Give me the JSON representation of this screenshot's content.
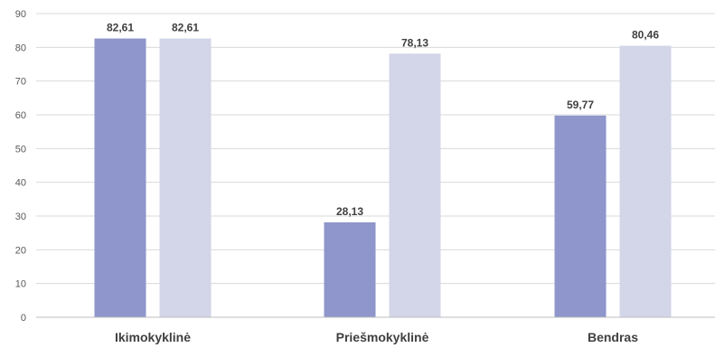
{
  "chart_data": {
    "type": "bar",
    "categories": [
      "Ikimokyklinė",
      "Priešmokyklinė",
      "Bendras"
    ],
    "series": [
      {
        "values": [
          82.61,
          28.13,
          59.77
        ],
        "color": "#8e96cb"
      },
      {
        "values": [
          82.61,
          78.13,
          80.46
        ],
        "color": "#d3d6e8"
      }
    ],
    "data_labels": [
      [
        "82,61",
        "28,13",
        "59,77"
      ],
      [
        "82,61",
        "78,13",
        "80,46"
      ]
    ],
    "y_ticks": [
      "0",
      "10",
      "20",
      "30",
      "40",
      "50",
      "60",
      "70",
      "80",
      "90"
    ],
    "ylim": [
      0,
      90
    ],
    "grid": true,
    "legend": "none"
  }
}
